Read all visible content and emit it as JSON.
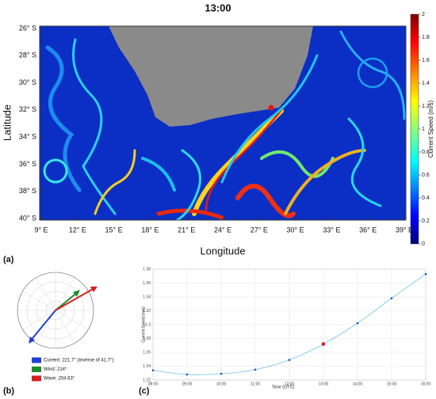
{
  "chart_data": [
    {
      "type": "heatmap",
      "title": "13:00",
      "panel": "(a)",
      "xlabel": "Longitude",
      "ylabel": "Latitude",
      "xlim": [
        9,
        39
      ],
      "ylim": [
        26,
        40
      ],
      "xticks": [
        {
          "value": 9,
          "label": "9° E"
        },
        {
          "value": 12,
          "label": "12° E"
        },
        {
          "value": 15,
          "label": "15° E"
        },
        {
          "value": 18,
          "label": "18° E"
        },
        {
          "value": 21,
          "label": "21° E"
        },
        {
          "value": 24,
          "label": "24° E"
        },
        {
          "value": 27,
          "label": "27° E"
        },
        {
          "value": 30,
          "label": "30° E"
        },
        {
          "value": 33,
          "label": "33° E"
        },
        {
          "value": 36,
          "label": "36° E"
        },
        {
          "value": 39,
          "label": "39° E"
        }
      ],
      "yticks": [
        {
          "value": 26,
          "label": "26° S"
        },
        {
          "value": 28,
          "label": "28° S"
        },
        {
          "value": 30,
          "label": "30° S"
        },
        {
          "value": 32,
          "label": "32° S"
        },
        {
          "value": 34,
          "label": "34° S"
        },
        {
          "value": 36,
          "label": "36° S"
        },
        {
          "value": 38,
          "label": "38° S"
        },
        {
          "value": 40,
          "label": "40° S"
        }
      ],
      "colorbar": {
        "label": "Current Speed (m/s)",
        "lim": [
          0,
          2
        ],
        "ticks": [
          0,
          0.2,
          0.4,
          0.6,
          0.8,
          1,
          1.2,
          1.4,
          1.6,
          1.8,
          2
        ]
      }
    },
    {
      "type": "polar",
      "panel": "(b)",
      "series": [
        {
          "name": "Current: 221.7° (Inverse of 41.7°)",
          "color": "#1f3fd6"
        },
        {
          "name": "Wind: 214°",
          "color": "#1e8c2a"
        },
        {
          "name": "Wave: 204.63°",
          "color": "#d62020"
        }
      ]
    },
    {
      "type": "line",
      "panel": "(c)",
      "xlabel": "Time (UTC)",
      "ylabel": "Current Speed (m/s)",
      "categories": [
        "08:00",
        "09:00",
        "10:00",
        "11:00",
        "12:00",
        "13:00",
        "14:00",
        "15:00",
        "16:00"
      ],
      "ylim": [
        1.22,
        1.38
      ],
      "yticks": [
        1.22,
        1.24,
        1.26,
        1.28,
        1.3,
        1.32,
        1.34,
        1.36,
        1.38
      ],
      "grid": true,
      "series": [
        {
          "color": "#6cc4ea",
          "values": [
            1.234,
            1.228,
            1.229,
            1.235,
            1.249,
            1.272,
            1.302,
            1.338,
            1.373
          ],
          "point_colors": [
            "#2a3fd0",
            "#2a3fd0",
            "#2a3fd0",
            "#2a3fd0",
            "#2a3fd0",
            "#d62020",
            "#2a3fd0",
            "#2a3fd0",
            "#2a3fd0"
          ]
        }
      ]
    }
  ]
}
